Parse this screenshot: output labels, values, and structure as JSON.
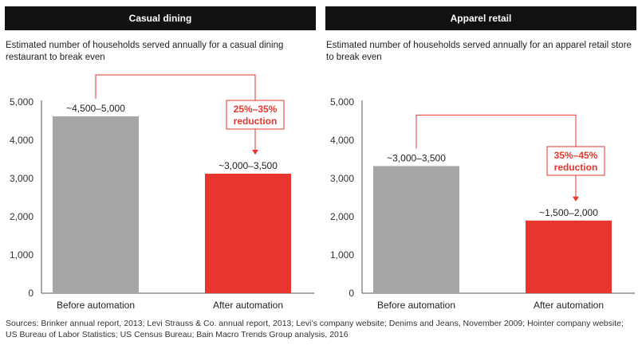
{
  "chart_data": [
    {
      "type": "bar",
      "title": "Casual dining",
      "subtitle": "Estimated number of households served annually for a casual dining restaurant to break even",
      "categories": [
        "Before automation",
        "After automation"
      ],
      "values": [
        4625,
        3125
      ],
      "value_labels": [
        "~4,500–5,000",
        "~3,000–3,500"
      ],
      "colors": [
        "#a6a6a6",
        "#e8352e"
      ],
      "ylim": [
        0,
        5000
      ],
      "yticks": [
        0,
        1000,
        2000,
        3000,
        4000,
        5000
      ],
      "ytick_labels": [
        "0",
        "1,000",
        "2,000",
        "3,000",
        "4,000",
        "5,000"
      ],
      "annotation": {
        "line1": "25%–35%",
        "line2": "reduction",
        "color": "#e8352e"
      },
      "grid": false
    },
    {
      "type": "bar",
      "title": "Apparel retail",
      "subtitle": "Estimated number of households served annually for an apparel retail store to break even",
      "categories": [
        "Before automation",
        "After automation"
      ],
      "values": [
        3325,
        1900
      ],
      "value_labels": [
        "~3,000–3,500",
        "~1,500–2,000"
      ],
      "colors": [
        "#a6a6a6",
        "#e8352e"
      ],
      "ylim": [
        0,
        5000
      ],
      "yticks": [
        0,
        1000,
        2000,
        3000,
        4000,
        5000
      ],
      "ytick_labels": [
        "0",
        "1,000",
        "2,000",
        "3,000",
        "4,000",
        "5,000"
      ],
      "annotation": {
        "line1": "35%–45%",
        "line2": "reduction",
        "color": "#e8352e"
      },
      "grid": false
    }
  ],
  "sources": "Sources: Brinker annual report, 2013; Levi Strauss & Co. annual report, 2013; Levi’s company website; Denims and Jeans, November 2009; Hointer company website; US Bureau of Labor Statistics; US Census Bureau; Bain Macro Trends Group analysis, 2016"
}
